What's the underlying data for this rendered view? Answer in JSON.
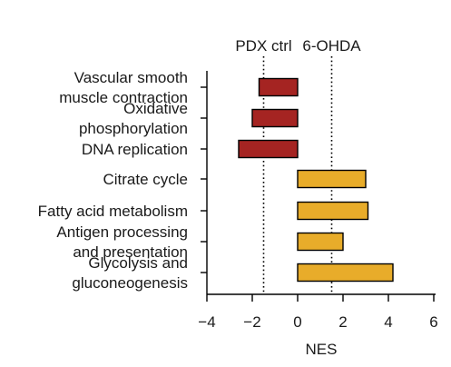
{
  "chart_data": {
    "type": "bar",
    "orientation": "horizontal",
    "categories": [
      [
        "Vascular smooth",
        "muscle contraction"
      ],
      [
        "Oxidative",
        "phosphorylation"
      ],
      [
        "DNA replication"
      ],
      [
        "Citrate cycle"
      ],
      [
        "Fatty acid metabolism"
      ],
      [
        "Antigen processing",
        "and presentation"
      ],
      [
        "Glycolysis and",
        "gluconeogenesis"
      ]
    ],
    "values": [
      -1.7,
      -2.0,
      -2.6,
      3.0,
      3.1,
      2.0,
      4.2
    ],
    "xlabel": "NES",
    "xlim": [
      -4,
      6
    ],
    "xticks": [
      -4,
      -2,
      0,
      2,
      4,
      6
    ],
    "xtick_labels": [
      "−4",
      "−2",
      "0",
      "2",
      "4",
      "6"
    ],
    "reference_lines": [
      {
        "label": "PDX ctrl",
        "value": -1.5
      },
      {
        "label": "6-OHDA",
        "value": 1.5
      }
    ],
    "colors": {
      "negative": "#a52422",
      "positive": "#e8ac2a",
      "outline": "#000000"
    },
    "grid": false
  }
}
